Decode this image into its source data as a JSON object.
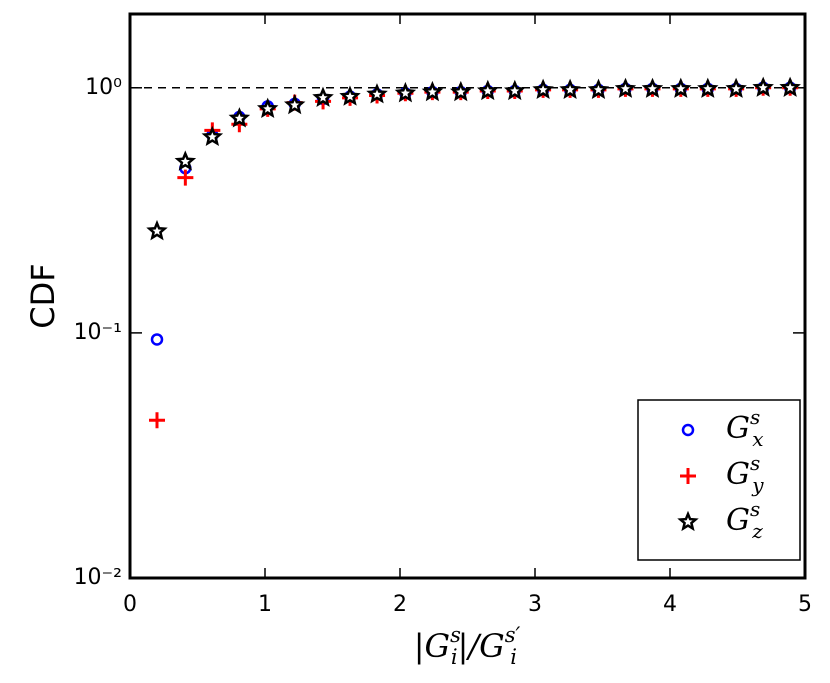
{
  "chart_data": {
    "type": "scatter",
    "ylabel": "CDF",
    "xlabel_parts": [
      {
        "text": "|G"
      },
      {
        "sub": "i",
        "sup": "s"
      },
      {
        "text": "|/G"
      },
      {
        "sub": "i",
        "sup": "s′"
      }
    ],
    "xlim": [
      0,
      5
    ],
    "xticks": [
      0,
      1,
      2,
      3,
      4,
      5
    ],
    "ylim": [
      0.01,
      2
    ],
    "log_y": true,
    "yticks": [
      {
        "value": 0.01,
        "label": "10⁻²"
      },
      {
        "value": 0.1,
        "label": "10⁻¹"
      },
      {
        "value": 1,
        "label": "10⁰"
      }
    ],
    "hline": 1,
    "legend": "lower right",
    "x": [
      0.2,
      0.41,
      0.61,
      0.81,
      1.02,
      1.22,
      1.43,
      1.63,
      1.83,
      2.04,
      2.24,
      2.45,
      2.65,
      2.85,
      3.06,
      3.26,
      3.47,
      3.67,
      3.87,
      4.08,
      4.28,
      4.49,
      4.69,
      4.89
    ],
    "series": [
      {
        "name": "G",
        "subscript": "x",
        "superscript": "s",
        "marker": "circle",
        "color": "#0000ff",
        "values": [
          0.094,
          0.47,
          0.64,
          0.76,
          0.84,
          0.86,
          0.9,
          0.92,
          0.94,
          0.95,
          0.96,
          0.96,
          0.97,
          0.97,
          0.98,
          0.98,
          0.98,
          0.99,
          0.99,
          0.99,
          0.99,
          0.99,
          1.0,
          1.0
        ]
      },
      {
        "name": "G",
        "subscript": "y",
        "superscript": "s",
        "marker": "plus",
        "color": "#ff0000",
        "values": [
          0.044,
          0.43,
          0.67,
          0.71,
          0.82,
          0.87,
          0.88,
          0.91,
          0.93,
          0.95,
          0.96,
          0.96,
          0.97,
          0.97,
          0.98,
          0.98,
          0.98,
          0.99,
          0.99,
          0.99,
          0.99,
          0.99,
          1.0,
          1.0
        ]
      },
      {
        "name": "G",
        "subscript": "z",
        "superscript": "s",
        "marker": "star",
        "color": "#000000",
        "values": [
          0.26,
          0.5,
          0.63,
          0.75,
          0.82,
          0.85,
          0.91,
          0.92,
          0.94,
          0.95,
          0.96,
          0.96,
          0.97,
          0.97,
          0.98,
          0.98,
          0.98,
          0.99,
          0.99,
          0.99,
          0.99,
          0.99,
          1.0,
          1.0
        ]
      }
    ]
  }
}
